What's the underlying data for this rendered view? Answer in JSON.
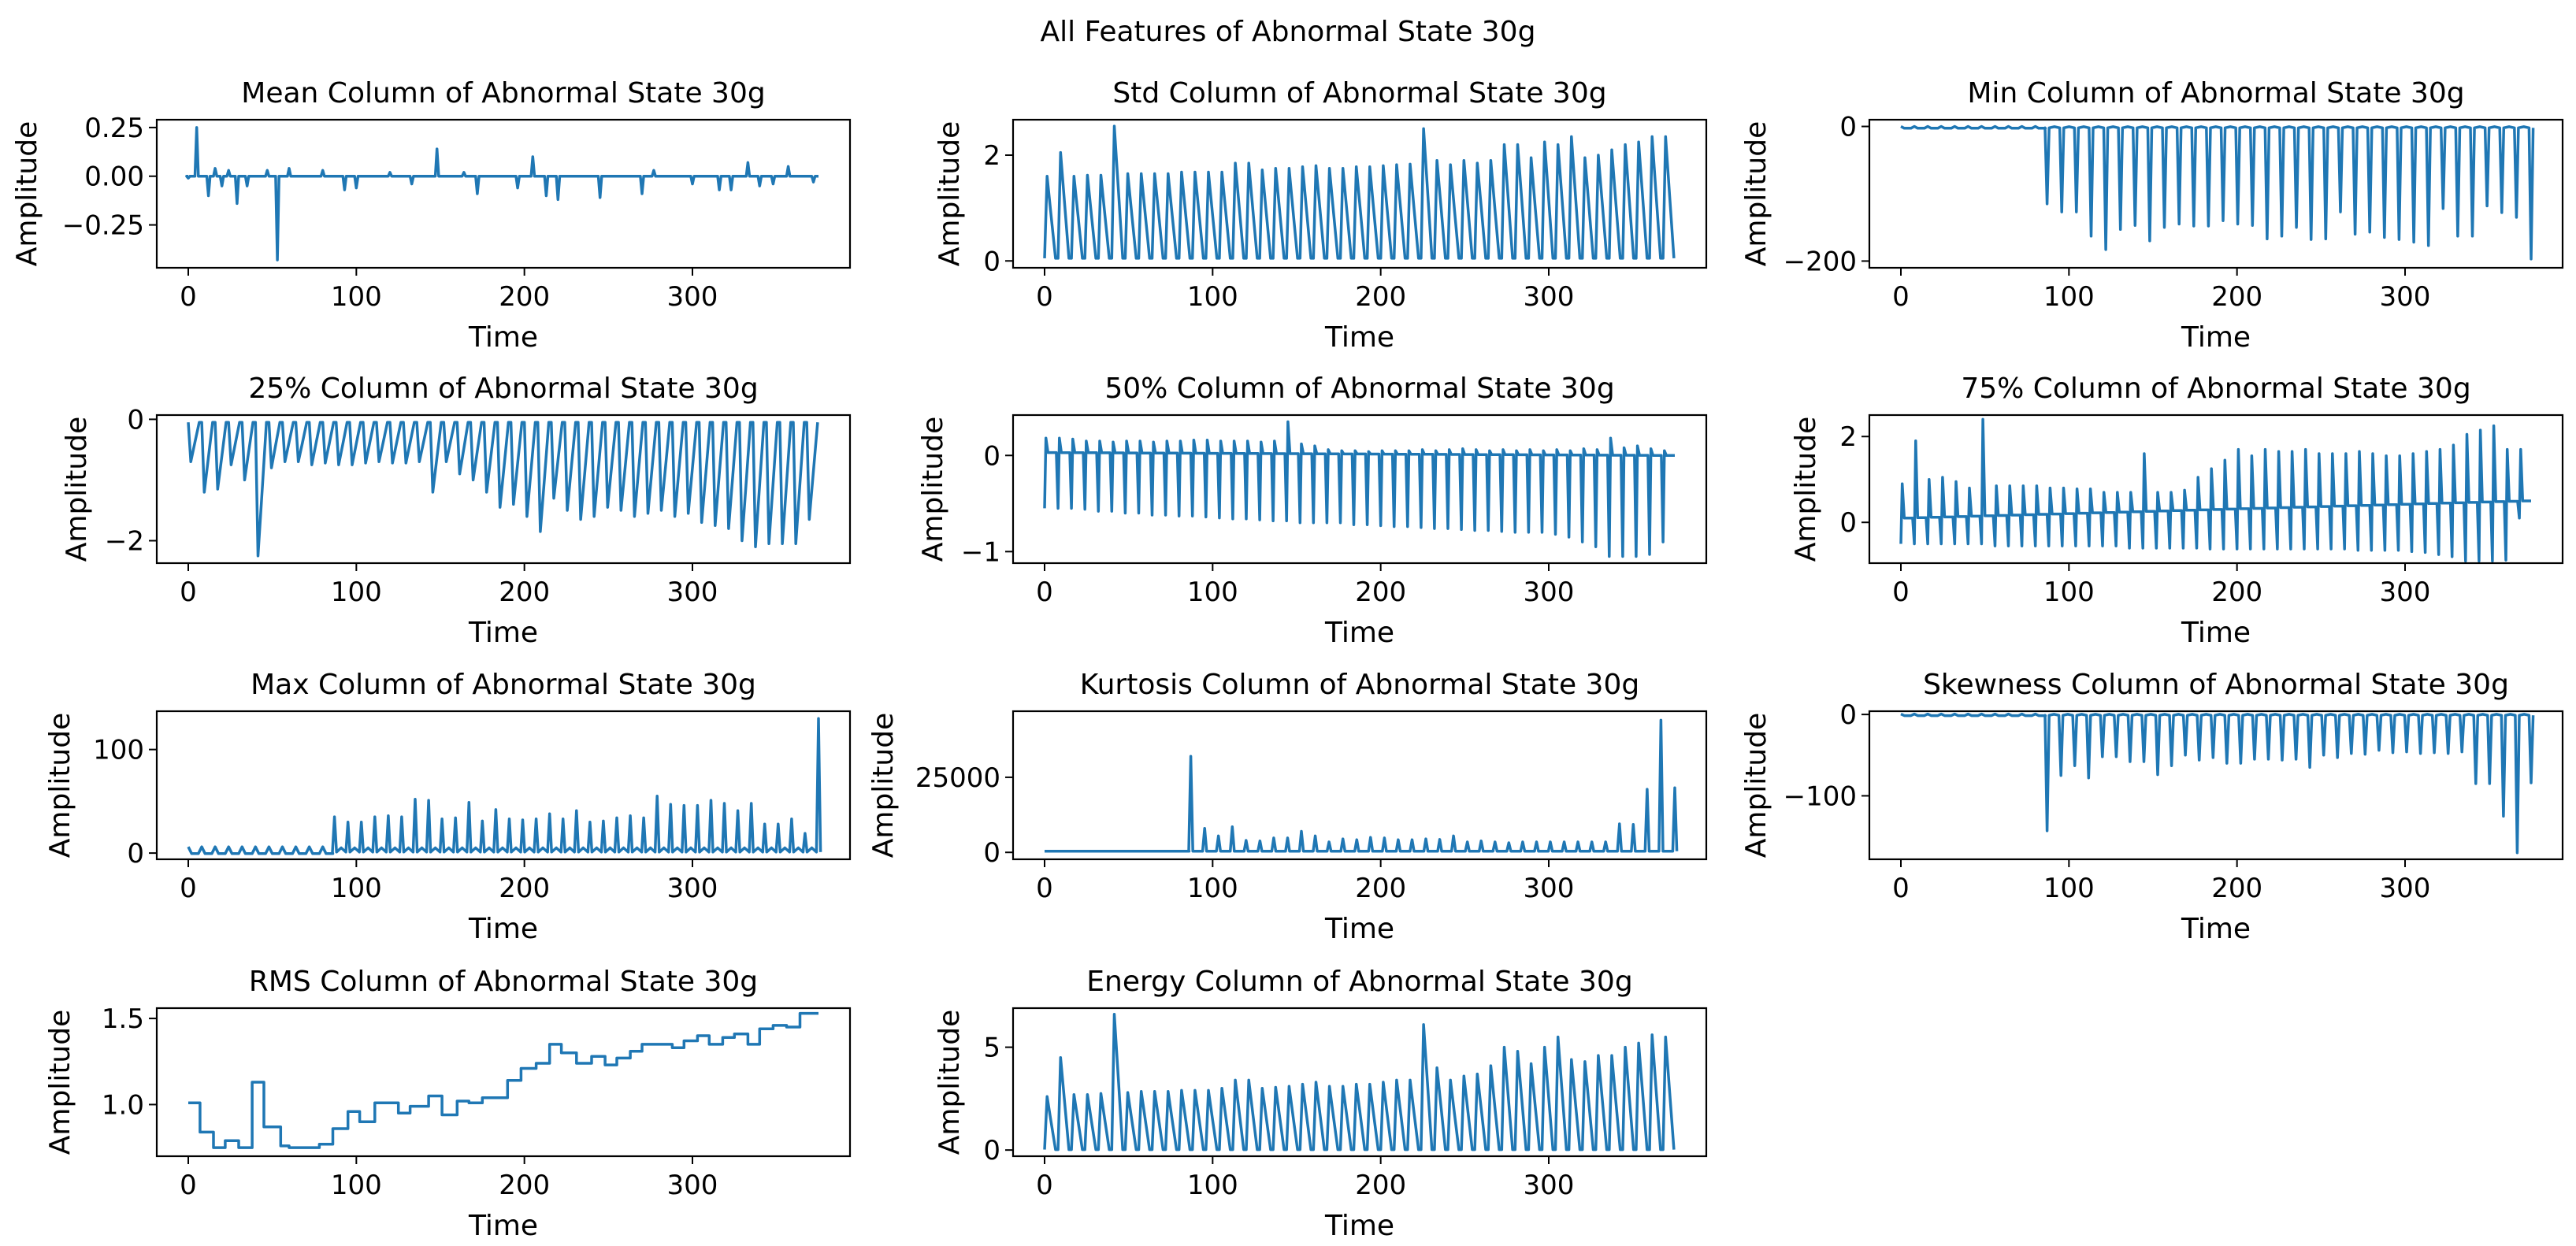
{
  "suptitle": "All Features of Abnormal State 30g",
  "line_color": "#1f77b4",
  "chart_data": [
    {
      "type": "line",
      "title": "Mean Column of Abnormal State 30g",
      "xlabel": "Time",
      "ylabel": "Amplitude",
      "xlim": [
        -18.75,
        393.75
      ],
      "ylim": [
        -0.47,
        0.29
      ],
      "xticks": [
        0,
        100,
        200,
        300
      ],
      "xticklabels": [
        "0",
        "100",
        "200",
        "300"
      ],
      "yticks": [
        -0.25,
        0,
        0.25
      ],
      "yticklabels": [
        "−0.25",
        "0.00",
        "0.25"
      ],
      "series": {
        "kind": "spikes_at",
        "base": 0,
        "end": 375,
        "spikes": [
          [
            0,
            -0.01
          ],
          [
            5,
            0.25
          ],
          [
            12,
            -0.1
          ],
          [
            16,
            0.04
          ],
          [
            20,
            -0.05
          ],
          [
            24,
            0.03
          ],
          [
            29,
            -0.14
          ],
          [
            35,
            -0.05
          ],
          [
            47,
            0.03
          ],
          [
            53,
            -0.43
          ],
          [
            60,
            0.04
          ],
          [
            80,
            0.03
          ],
          [
            93,
            -0.07
          ],
          [
            100,
            -0.06
          ],
          [
            120,
            0.02
          ],
          [
            133,
            -0.04
          ],
          [
            148,
            0.14
          ],
          [
            164,
            0.02
          ],
          [
            172,
            -0.09
          ],
          [
            196,
            -0.06
          ],
          [
            205,
            0.1
          ],
          [
            213,
            -0.1
          ],
          [
            220,
            -0.12
          ],
          [
            245,
            -0.11
          ],
          [
            270,
            -0.09
          ],
          [
            277,
            0.03
          ],
          [
            300,
            -0.04
          ],
          [
            316,
            -0.07
          ],
          [
            323,
            -0.07
          ],
          [
            333,
            0.07
          ],
          [
            340,
            -0.05
          ],
          [
            348,
            -0.04
          ],
          [
            357,
            0.05
          ],
          [
            372,
            -0.03
          ]
        ]
      }
    },
    {
      "type": "line",
      "title": "Std Column of Abnormal State 30g",
      "xlabel": "Time",
      "ylabel": "Amplitude",
      "xlim": [
        -18.75,
        393.75
      ],
      "ylim": [
        -0.13,
        2.67
      ],
      "xticks": [
        0,
        100,
        200,
        300
      ],
      "xticklabels": [
        "0",
        "100",
        "200",
        "300"
      ],
      "yticks": [
        0,
        2
      ],
      "yticklabels": [
        "0",
        "2"
      ],
      "series": {
        "kind": "sawtooth",
        "low": 0.05,
        "start": 0,
        "period": 8,
        "peaks": [
          1.6,
          2.05,
          1.6,
          1.62,
          1.62,
          2.55,
          1.65,
          1.65,
          1.65,
          1.65,
          1.68,
          1.68,
          1.68,
          1.68,
          1.85,
          1.85,
          1.72,
          1.75,
          1.75,
          1.78,
          1.8,
          1.75,
          1.75,
          1.78,
          1.78,
          1.8,
          1.82,
          1.83,
          2.5,
          1.9,
          1.82,
          1.9,
          1.85,
          1.9,
          2.2,
          2.2,
          1.95,
          2.25,
          2.2,
          2.35,
          1.95,
          2.0,
          2.1,
          2.2,
          2.25,
          2.35,
          2.35
        ]
      }
    },
    {
      "type": "line",
      "title": "Min Column of Abnormal State 30g",
      "xlabel": "Time",
      "ylabel": "Amplitude",
      "xlim": [
        -18.75,
        393.75
      ],
      "ylim": [
        -210,
        10
      ],
      "xticks": [
        0,
        100,
        200,
        300
      ],
      "xticklabels": [
        "0",
        "100",
        "200",
        "300"
      ],
      "yticks": [
        -200,
        0
      ],
      "yticklabels": [
        "−200",
        "0"
      ],
      "series": {
        "kind": "periodic_spikes",
        "base": -2,
        "start": 87,
        "end": 375,
        "pre_ripple": 2,
        "values": [
          -115,
          -127,
          -127,
          -163,
          -183,
          -153,
          -147,
          -170,
          -150,
          -145,
          -148,
          -148,
          -140,
          -145,
          -147,
          -167,
          -163,
          -150,
          -168,
          -167,
          -127,
          -160,
          -157,
          -165,
          -168,
          -172,
          -177,
          -122,
          -163,
          -163,
          -118,
          -128,
          -135,
          -197
        ]
      }
    },
    {
      "type": "line",
      "title": "25% Column of Abnormal State 30g",
      "xlabel": "Time",
      "ylabel": "Amplitude",
      "xlim": [
        -18.75,
        393.75
      ],
      "ylim": [
        -2.37,
        0.07
      ],
      "xticks": [
        0,
        100,
        200,
        300
      ],
      "xticklabels": [
        "0",
        "100",
        "200",
        "300"
      ],
      "yticks": [
        -2,
        0
      ],
      "yticklabels": [
        "−2",
        "0"
      ],
      "series": {
        "kind": "sawtooth",
        "low": -0.05,
        "start": 0,
        "period": 8,
        "peaks": [
          -0.7,
          -1.2,
          -1.15,
          -0.75,
          -1.0,
          -2.25,
          -0.8,
          -0.7,
          -0.7,
          -0.75,
          -0.72,
          -0.75,
          -0.75,
          -0.72,
          -0.7,
          -0.72,
          -0.72,
          -0.7,
          -1.2,
          -0.7,
          -0.9,
          -1.0,
          -1.2,
          -1.45,
          -1.4,
          -1.6,
          -1.85,
          -1.3,
          -1.5,
          -1.65,
          -1.6,
          -1.45,
          -1.5,
          -1.6,
          -1.55,
          -1.5,
          -1.6,
          -1.55,
          -1.7,
          -1.75,
          -1.8,
          -2.0,
          -2.1,
          -2.05,
          -2.05,
          -2.05,
          -1.65
        ]
      }
    },
    {
      "type": "line",
      "title": "50% Column of Abnormal State 30g",
      "xlabel": "Time",
      "ylabel": "Amplitude",
      "xlim": [
        -18.75,
        393.75
      ],
      "ylim": [
        -1.12,
        0.42
      ],
      "xticks": [
        0,
        100,
        200,
        300
      ],
      "xticklabels": [
        "0",
        "100",
        "200",
        "300"
      ],
      "yticks": [
        -1,
        0
      ],
      "yticklabels": [
        "−1",
        "0"
      ],
      "series": {
        "kind": "bipolar",
        "start": 0,
        "period": 8,
        "base_start": 0.03,
        "base_end": 0.0,
        "peaks": [
          0.18,
          0.18,
          0.17,
          0.15,
          0.15,
          0.14,
          0.15,
          0.15,
          0.14,
          0.15,
          0.15,
          0.16,
          0.16,
          0.15,
          0.15,
          0.15,
          0.14,
          0.15,
          0.35,
          0.12,
          0.1,
          0.06,
          0.05,
          0.05,
          0.04,
          0.05,
          0.05,
          0.05,
          0.06,
          0.05,
          0.06,
          0.07,
          0.06,
          0.05,
          0.06,
          0.05,
          0.06,
          0.05,
          0.06,
          0.05,
          0.07,
          0.06,
          0.18,
          0.08,
          0.1,
          0.07,
          0.05
        ],
        "troughs": [
          -0.55,
          -0.55,
          -0.55,
          -0.56,
          -0.58,
          -0.58,
          -0.6,
          -0.6,
          -0.62,
          -0.62,
          -0.63,
          -0.63,
          -0.64,
          -0.65,
          -0.66,
          -0.66,
          -0.67,
          -0.68,
          -0.68,
          -0.7,
          -0.7,
          -0.7,
          -0.7,
          -0.72,
          -0.72,
          -0.73,
          -0.74,
          -0.74,
          -0.75,
          -0.76,
          -0.76,
          -0.77,
          -0.78,
          -0.78,
          -0.79,
          -0.8,
          -0.8,
          -0.8,
          -0.82,
          -0.85,
          -0.9,
          -0.95,
          -1.05,
          -1.05,
          -1.05,
          -1.03,
          -0.9
        ]
      }
    },
    {
      "type": "line",
      "title": "75% Column of Abnormal State 30g",
      "xlabel": "Time",
      "ylabel": "Amplitude",
      "xlim": [
        -18.75,
        393.75
      ],
      "ylim": [
        -0.95,
        2.5
      ],
      "xticks": [
        0,
        100,
        200,
        300
      ],
      "xticklabels": [
        "0",
        "100",
        "200",
        "300"
      ],
      "yticks": [
        0,
        2
      ],
      "yticklabels": [
        "0",
        "2"
      ],
      "series": {
        "kind": "bipolar",
        "start": 0,
        "period": 8,
        "base_start": 0.1,
        "base_end": 0.5,
        "peaks": [
          0.9,
          1.9,
          1.0,
          1.05,
          0.95,
          0.8,
          2.4,
          0.85,
          0.85,
          0.85,
          0.85,
          0.8,
          0.8,
          0.78,
          0.78,
          0.7,
          0.7,
          0.7,
          1.6,
          0.7,
          0.7,
          0.75,
          1.05,
          1.25,
          1.45,
          1.7,
          1.55,
          1.7,
          1.65,
          1.65,
          1.7,
          1.6,
          1.6,
          1.6,
          1.65,
          1.6,
          1.55,
          1.55,
          1.6,
          1.65,
          1.7,
          1.8,
          2.05,
          2.15,
          2.25,
          1.7,
          1.7
        ],
        "troughs": [
          -0.5,
          -0.5,
          -0.5,
          -0.5,
          -0.5,
          -0.5,
          -0.5,
          -0.55,
          -0.55,
          -0.55,
          -0.55,
          -0.55,
          -0.55,
          -0.55,
          -0.55,
          -0.55,
          -0.55,
          -0.6,
          -0.6,
          -0.6,
          -0.6,
          -0.6,
          -0.6,
          -0.62,
          -0.62,
          -0.62,
          -0.62,
          -0.62,
          -0.62,
          -0.62,
          -0.62,
          -0.62,
          -0.62,
          -0.62,
          -0.65,
          -0.65,
          -0.65,
          -0.65,
          -0.68,
          -0.7,
          -0.75,
          -0.8,
          -0.9,
          -0.9,
          -0.9,
          -0.88,
          0.1
        ]
      }
    },
    {
      "type": "line",
      "title": "Max Column of Abnormal State 30g",
      "xlabel": "Time",
      "ylabel": "Amplitude",
      "xlim": [
        -18.75,
        393.75
      ],
      "ylim": [
        -6,
        137
      ],
      "xticks": [
        0,
        100,
        200,
        300
      ],
      "xticklabels": [
        "0",
        "100",
        "200",
        "300"
      ],
      "yticks": [
        0,
        100
      ],
      "yticklabels": [
        "0",
        "100"
      ],
      "series": {
        "kind": "periodic_spikes",
        "base": 1,
        "start": 87,
        "end": 375,
        "pre_ripple": 5,
        "values": [
          35,
          30,
          30,
          35,
          36,
          35,
          52,
          51,
          33,
          34,
          49,
          31,
          42,
          33,
          32,
          33,
          38,
          33,
          41,
          30,
          31,
          34,
          36,
          34,
          55,
          47,
          46,
          46,
          51,
          48,
          41,
          48,
          28,
          28,
          33,
          19,
          130
        ]
      }
    },
    {
      "type": "line",
      "title": "Kurtosis Column of Abnormal State 30g",
      "xlabel": "Time",
      "ylabel": "Amplitude",
      "xlim": [
        -18.75,
        393.75
      ],
      "ylim": [
        -2300,
        47000
      ],
      "xticks": [
        0,
        100,
        200,
        300
      ],
      "xticklabels": [
        "0",
        "100",
        "200",
        "300"
      ],
      "yticks": [
        0,
        25000
      ],
      "yticklabels": [
        "0",
        "25000"
      ],
      "series": {
        "kind": "periodic_spikes",
        "base": 400,
        "start": 87,
        "end": 375,
        "pre_ripple": 0,
        "values": [
          32000,
          8000,
          5500,
          8500,
          4000,
          3800,
          4800,
          4800,
          7000,
          5500,
          3500,
          4500,
          4200,
          5000,
          4800,
          4200,
          4200,
          4500,
          4300,
          5500,
          3500,
          3800,
          3500,
          3200,
          3500,
          3500,
          3500,
          3500,
          3500,
          3500,
          3500,
          9500,
          9300,
          21000,
          44000,
          21500
        ]
      }
    },
    {
      "type": "line",
      "title": "Skewness Column of Abnormal State 30g",
      "xlabel": "Time",
      "ylabel": "Amplitude",
      "xlim": [
        -18.75,
        393.75
      ],
      "ylim": [
        -178,
        4
      ],
      "xticks": [
        0,
        100,
        200,
        300
      ],
      "xticklabels": [
        "0",
        "100",
        "200",
        "300"
      ],
      "yticks": [
        -100,
        0
      ],
      "yticklabels": [
        "−100",
        "0"
      ],
      "series": {
        "kind": "periodic_spikes",
        "base": -1,
        "start": 87,
        "end": 375,
        "pre_ripple": 1.5,
        "values": [
          -143,
          -75,
          -63,
          -78,
          -52,
          -52,
          -58,
          -58,
          -74,
          -63,
          -50,
          -56,
          -53,
          -60,
          -60,
          -55,
          -55,
          -56,
          -55,
          -65,
          -50,
          -53,
          -48,
          -49,
          -44,
          -47,
          -46,
          -48,
          -47,
          -48,
          -46,
          -85,
          -85,
          -125,
          -170,
          -84
        ]
      }
    },
    {
      "type": "line",
      "title": "RMS Column of Abnormal State 30g",
      "xlabel": "Time",
      "ylabel": "Amplitude",
      "xlim": [
        -18.75,
        393.75
      ],
      "ylim": [
        0.7,
        1.56
      ],
      "xticks": [
        0,
        100,
        200,
        300
      ],
      "xticklabels": [
        "0",
        "100",
        "200",
        "300"
      ],
      "yticks": [
        1.0,
        1.5
      ],
      "yticklabels": [
        "1.0",
        "1.5"
      ],
      "series": {
        "kind": "steps",
        "end": 375,
        "steps": [
          [
            0,
            1.01
          ],
          [
            7,
            0.84
          ],
          [
            15,
            0.75
          ],
          [
            22,
            0.79
          ],
          [
            30,
            0.75
          ],
          [
            38,
            1.13
          ],
          [
            45,
            0.87
          ],
          [
            55,
            0.76
          ],
          [
            60,
            0.75
          ],
          [
            78,
            0.77
          ],
          [
            86,
            0.86
          ],
          [
            95,
            0.96
          ],
          [
            102,
            0.9
          ],
          [
            111,
            1.01
          ],
          [
            125,
            0.95
          ],
          [
            132,
            0.99
          ],
          [
            143,
            1.05
          ],
          [
            151,
            0.94
          ],
          [
            160,
            1.02
          ],
          [
            167,
            1.01
          ],
          [
            175,
            1.04
          ],
          [
            190,
            1.14
          ],
          [
            198,
            1.21
          ],
          [
            207,
            1.24
          ],
          [
            215,
            1.35
          ],
          [
            222,
            1.3
          ],
          [
            231,
            1.24
          ],
          [
            240,
            1.28
          ],
          [
            248,
            1.23
          ],
          [
            255,
            1.27
          ],
          [
            263,
            1.31
          ],
          [
            270,
            1.35
          ],
          [
            288,
            1.33
          ],
          [
            295,
            1.37
          ],
          [
            303,
            1.4
          ],
          [
            310,
            1.35
          ],
          [
            318,
            1.39
          ],
          [
            325,
            1.41
          ],
          [
            333,
            1.35
          ],
          [
            340,
            1.44
          ],
          [
            348,
            1.46
          ],
          [
            356,
            1.45
          ],
          [
            364,
            1.53
          ]
        ]
      }
    },
    {
      "type": "line",
      "title": "Energy Column of Abnormal State 30g",
      "xlabel": "Time",
      "ylabel": "Amplitude",
      "xlim": [
        -18.75,
        393.75
      ],
      "ylim": [
        -0.3,
        6.9
      ],
      "xticks": [
        0,
        100,
        200,
        300
      ],
      "xticklabels": [
        "0",
        "100",
        "200",
        "300"
      ],
      "yticks": [
        0,
        5
      ],
      "yticklabels": [
        "0",
        "5"
      ],
      "series": {
        "kind": "sawtooth",
        "low": 0.02,
        "start": 0,
        "period": 8,
        "peaks": [
          2.6,
          4.5,
          2.7,
          2.7,
          2.75,
          6.6,
          2.8,
          2.85,
          2.85,
          2.85,
          2.9,
          2.9,
          2.9,
          3.0,
          3.4,
          3.4,
          3.0,
          3.05,
          3.1,
          3.2,
          3.3,
          3.1,
          3.1,
          3.2,
          3.2,
          3.3,
          3.4,
          3.4,
          6.1,
          4.0,
          3.4,
          3.6,
          3.7,
          4.1,
          5.0,
          4.8,
          4.2,
          5.0,
          5.5,
          4.4,
          4.3,
          4.6,
          4.6,
          5.0,
          5.2,
          5.6,
          5.5
        ]
      }
    }
  ]
}
